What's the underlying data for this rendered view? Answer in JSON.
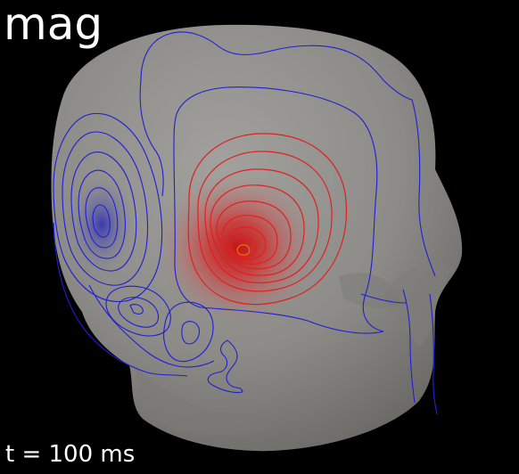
{
  "view": {
    "title": "mag",
    "time_label": "t = 100 ms"
  },
  "colors": {
    "background": "#000000",
    "head_surface": "#8f8e8a",
    "negative_contour": "#1f1fd6",
    "positive_contour": "#e02020",
    "text": "#ffffff"
  }
}
